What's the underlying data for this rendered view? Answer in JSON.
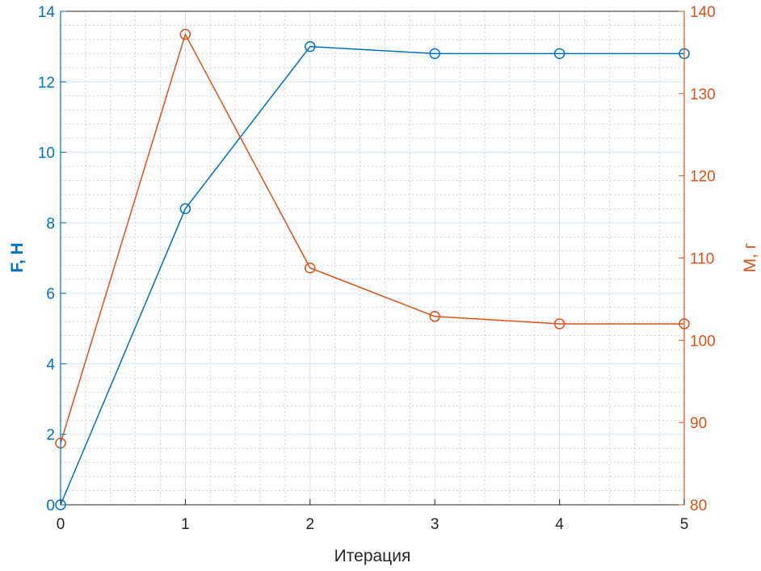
{
  "chart_data": {
    "type": "line",
    "xlabel": "Итерация",
    "ylabel_left": "F, H",
    "ylabel_right": "M, г",
    "x": [
      0,
      1,
      2,
      3,
      4,
      5
    ],
    "xticks": [
      "0",
      "1",
      "2",
      "3",
      "4",
      "5"
    ],
    "xlim": [
      0,
      5
    ],
    "ylim_left": [
      0,
      14
    ],
    "yticks_left": [
      "0",
      "2",
      "4",
      "6",
      "8",
      "10",
      "12",
      "14"
    ],
    "ylim_right": [
      80,
      140
    ],
    "yticks_right": [
      "80",
      "90",
      "100",
      "110",
      "120",
      "130",
      "140"
    ],
    "grid": true,
    "minor_grid": true,
    "series": [
      {
        "axis": "left",
        "color": "#0072BD",
        "marker": "circle",
        "values": [
          0.0,
          8.4,
          13.0,
          12.8,
          12.8,
          12.8
        ]
      },
      {
        "axis": "right",
        "color": "#D95319",
        "marker": "circle",
        "values": [
          87.5,
          137.2,
          108.8,
          102.9,
          102.0,
          102.0
        ]
      }
    ],
    "colors": {
      "left_axis": "#0072BD",
      "right_axis": "#D95319",
      "major_grid": "#cfe6f3",
      "minor_grid": "#c8c8c8",
      "box": "#262626"
    }
  }
}
